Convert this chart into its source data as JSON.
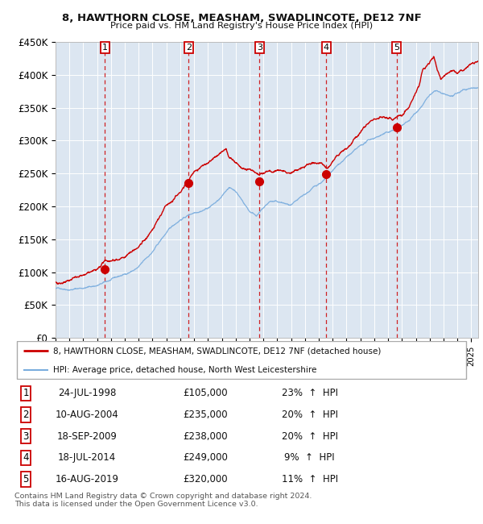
{
  "title": "8, HAWTHORN CLOSE, MEASHAM, SWADLINCOTE, DE12 7NF",
  "subtitle": "Price paid vs. HM Land Registry's House Price Index (HPI)",
  "background_color": "#ffffff",
  "plot_bg_color": "#dce6f1",
  "grid_color": "#ffffff",
  "hpi_line_color": "#7aadde",
  "price_line_color": "#cc0000",
  "sale_marker_color": "#cc0000",
  "dashed_line_color": "#cc0000",
  "ylim": [
    0,
    450000
  ],
  "yticks": [
    0,
    50000,
    100000,
    150000,
    200000,
    250000,
    300000,
    350000,
    400000,
    450000
  ],
  "ytick_labels": [
    "£0",
    "£50K",
    "£100K",
    "£150K",
    "£200K",
    "£250K",
    "£300K",
    "£350K",
    "£400K",
    "£450K"
  ],
  "sales": [
    {
      "num": 1,
      "date_label": "24-JUL-1998",
      "year": 1998.56,
      "price": 105000,
      "pct": "23%",
      "direction": "↑"
    },
    {
      "num": 2,
      "date_label": "10-AUG-2004",
      "year": 2004.61,
      "price": 235000,
      "pct": "20%",
      "direction": "↑"
    },
    {
      "num": 3,
      "date_label": "18-SEP-2009",
      "year": 2009.71,
      "price": 238000,
      "pct": "20%",
      "direction": "↑"
    },
    {
      "num": 4,
      "date_label": "18-JUL-2014",
      "year": 2014.54,
      "price": 249000,
      "pct": "9%",
      "direction": "↑"
    },
    {
      "num": 5,
      "date_label": "16-AUG-2019",
      "year": 2019.62,
      "price": 320000,
      "pct": "11%",
      "direction": "↑"
    }
  ],
  "legend_line1": "8, HAWTHORN CLOSE, MEASHAM, SWADLINCOTE, DE12 7NF (detached house)",
  "legend_line2": "HPI: Average price, detached house, North West Leicestershire",
  "footnote": "Contains HM Land Registry data © Crown copyright and database right 2024.\nThis data is licensed under the Open Government Licence v3.0.",
  "xmin": 1995.0,
  "xmax": 2025.5,
  "hpi_anchors": {
    "1995.0": 75000,
    "1996.0": 76000,
    "1997.0": 79000,
    "1998.0": 83000,
    "1999.0": 90000,
    "2000.0": 97000,
    "2001.0": 108000,
    "2002.0": 130000,
    "2003.0": 158000,
    "2004.0": 178000,
    "2005.0": 190000,
    "2006.0": 200000,
    "2007.0": 215000,
    "2007.5": 230000,
    "2008.0": 225000,
    "2008.5": 210000,
    "2009.0": 195000,
    "2009.5": 190000,
    "2010.0": 200000,
    "2010.5": 210000,
    "2011.0": 208000,
    "2011.5": 205000,
    "2012.0": 200000,
    "2012.5": 205000,
    "2013.0": 212000,
    "2013.5": 220000,
    "2014.0": 228000,
    "2014.5": 235000,
    "2015.0": 245000,
    "2015.5": 255000,
    "2016.0": 265000,
    "2016.5": 272000,
    "2017.0": 278000,
    "2017.5": 285000,
    "2018.0": 290000,
    "2018.5": 295000,
    "2019.0": 298000,
    "2019.5": 303000,
    "2020.0": 308000,
    "2020.5": 315000,
    "2021.0": 328000,
    "2021.5": 342000,
    "2022.0": 355000,
    "2022.5": 360000,
    "2023.0": 352000,
    "2023.5": 348000,
    "2024.0": 350000,
    "2024.5": 355000,
    "2025.0": 358000,
    "2025.5": 360000
  },
  "prop_anchors": {
    "1995.0": 85000,
    "1996.0": 87000,
    "1997.0": 90000,
    "1998.0": 95000,
    "1998.56": 105000,
    "1999.0": 108000,
    "2000.0": 118000,
    "2001.0": 132000,
    "2002.0": 158000,
    "2003.0": 192000,
    "2004.0": 215000,
    "2004.61": 235000,
    "2005.0": 248000,
    "2005.5": 255000,
    "2006.0": 262000,
    "2006.5": 270000,
    "2007.0": 278000,
    "2007.3": 282000,
    "2007.5": 270000,
    "2008.0": 262000,
    "2008.5": 255000,
    "2009.0": 248000,
    "2009.5": 240000,
    "2009.71": 238000,
    "2010.0": 242000,
    "2010.5": 248000,
    "2011.0": 250000,
    "2011.5": 248000,
    "2012.0": 244000,
    "2012.5": 248000,
    "2013.0": 252000,
    "2013.5": 256000,
    "2014.0": 258000,
    "2014.54": 249000,
    "2015.0": 258000,
    "2015.5": 268000,
    "2016.0": 278000,
    "2016.5": 288000,
    "2017.0": 295000,
    "2017.5": 305000,
    "2018.0": 315000,
    "2018.5": 322000,
    "2019.0": 318000,
    "2019.3": 315000,
    "2019.62": 320000,
    "2020.0": 328000,
    "2020.5": 340000,
    "2021.0": 358000,
    "2021.3": 375000,
    "2021.5": 395000,
    "2022.0": 405000,
    "2022.3": 415000,
    "2022.5": 400000,
    "2022.8": 385000,
    "2023.0": 390000,
    "2023.5": 400000,
    "2024.0": 395000,
    "2024.5": 400000,
    "2025.0": 410000,
    "2025.5": 420000
  }
}
